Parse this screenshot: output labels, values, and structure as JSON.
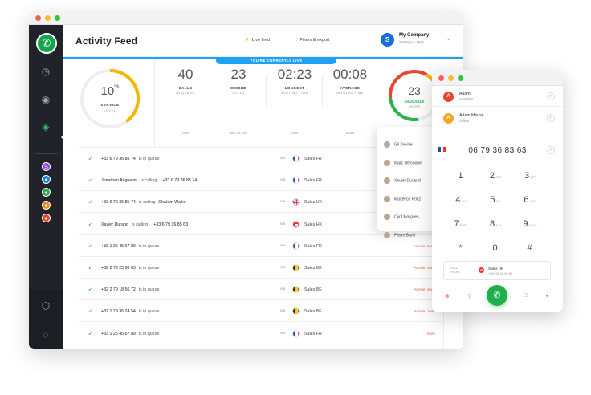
{
  "header": {
    "title": "Activity Feed",
    "live_feed": "Live feed",
    "filters": "Filters & export",
    "company_initial": "S",
    "company_name": "My Company",
    "company_sub": "Settings & Help"
  },
  "live_banner": "YOU'RE CURRENTLY LIVE",
  "service_gauge": {
    "value": "10",
    "unit": "%",
    "label": "SERVICE",
    "sub": "LEVEL",
    "level": 0.1,
    "color": "#f7b500"
  },
  "stats": [
    {
      "value": "40",
      "l1": "CALLS",
      "l2": "IN QUEUE",
      "foot": "now"
    },
    {
      "value": "23",
      "l1": "MISSED",
      "l2": "CALLS",
      "foot": "last 30 min"
    },
    {
      "value": "02:23",
      "l1": "LONGEST",
      "l2": "WAITING TIME",
      "foot": "now"
    },
    {
      "value": "00:08",
      "l1": "AVERAGE",
      "l2": "WAITING TIME",
      "foot": "today"
    }
  ],
  "users_gauge": {
    "value": "23",
    "label": "AVAILABLE",
    "sub": "USERS"
  },
  "feed": [
    {
      "number": "+33 6 79 36 85 74",
      "action": "is in queue",
      "agent": "",
      "target": "",
      "flag": "fr",
      "line": "Sales FR",
      "who": ""
    },
    {
      "number": "Jonathan Anguelov",
      "action": "is calling",
      "agent": "",
      "target": "+33 6 79 36 85 74",
      "flag": "fr",
      "line": "Sales FR",
      "who": ""
    },
    {
      "number": "+33 6 79 36 85 74",
      "action": "is calling",
      "agent": "Chaïam Walke",
      "target": "",
      "flag": "uk",
      "line": "Sales UK",
      "who": ""
    },
    {
      "number": "Xavier Durand",
      "action": "is calling",
      "agent": "",
      "target": "+33 6 79 36 85 63",
      "flag": "hk",
      "line": "Sales HK",
      "who": ""
    },
    {
      "number": "+33 1 25 45 67 89",
      "action": "is in queue",
      "agent": "",
      "target": "",
      "flag": "fr",
      "line": "Sales FR",
      "who": "Amelie, Jean"
    },
    {
      "number": "+32 2 79 25 98 63",
      "action": "is in queue",
      "agent": "",
      "target": "",
      "flag": "be",
      "line": "Sales BE",
      "who": "Amelie, Jean"
    },
    {
      "number": "+32 2 79 18 56 72",
      "action": "is in queue",
      "agent": "",
      "target": "",
      "flag": "be",
      "line": "Sales BE",
      "who": "Amelie, Jean"
    },
    {
      "number": "+32 1 79 36 24 54",
      "action": "is in queue",
      "agent": "",
      "target": "",
      "flag": "be",
      "line": "Sales BE",
      "who": "Amelie, Jean"
    },
    {
      "number": "+33 1 25 45 67 89",
      "action": "is in queue",
      "agent": "",
      "target": "",
      "flag": "fr",
      "line": "Sales FR",
      "who": "more"
    }
  ],
  "via": "via",
  "agents": [
    "Gil Deville",
    "Marc Delodone",
    "Xavier Ducand",
    "Maxence Holtz",
    "Cyril Morgues",
    "Pierre Barel"
  ],
  "phone": {
    "contacts": [
      {
        "initial": "A",
        "name": "Adam",
        "status": "Available",
        "color": "#e8462f"
      },
      {
        "initial": "A",
        "name": "Adam Meuse",
        "status": "Offline",
        "color": "#f5a623"
      }
    ],
    "dial_number": "06 79 36 83 63",
    "keys": [
      {
        "d": "1",
        "s": ""
      },
      {
        "d": "2",
        "s": "ABC"
      },
      {
        "d": "3",
        "s": "DEF"
      },
      {
        "d": "4",
        "s": "GHI"
      },
      {
        "d": "5",
        "s": "JKL"
      },
      {
        "d": "6",
        "s": "MNO"
      },
      {
        "d": "7",
        "s": "PQRS"
      },
      {
        "d": "8",
        "s": "TUV"
      },
      {
        "d": "9",
        "s": "WXYZ"
      },
      {
        "d": "*",
        "s": ""
      },
      {
        "d": "0",
        "s": ""
      },
      {
        "d": "#",
        "s": ""
      }
    ],
    "line_label1": "CALL",
    "line_label2": "FROM",
    "line_name": "Sales HK",
    "line_number": "+852 58 26 96 56"
  }
}
